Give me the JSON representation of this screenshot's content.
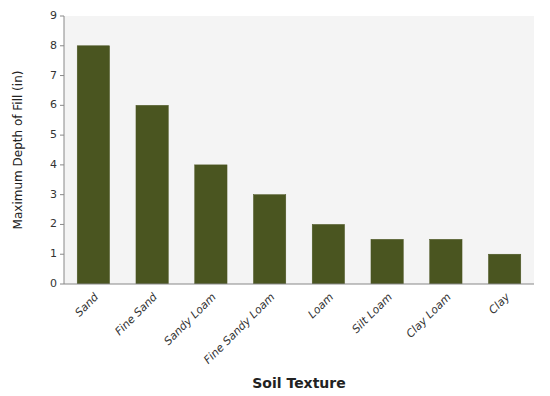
{
  "chart_data": {
    "type": "bar",
    "categories": [
      "Sand",
      "Fine Sand",
      "Sandy Loam",
      "Fine Sandy Loam",
      "Loam",
      "Silt Loam",
      "Clay Loam",
      "Clay"
    ],
    "values": [
      8,
      6,
      4,
      3,
      2,
      1.5,
      1.5,
      1
    ],
    "color": "#4a5520",
    "xlabel": "Soil Texture",
    "ylabel": "Maximum Depth of Fill (in)",
    "ylim": [
      0,
      9
    ],
    "yticks": [
      0,
      1,
      2,
      3,
      4,
      5,
      6,
      7,
      8,
      9
    ],
    "grid": false
  }
}
